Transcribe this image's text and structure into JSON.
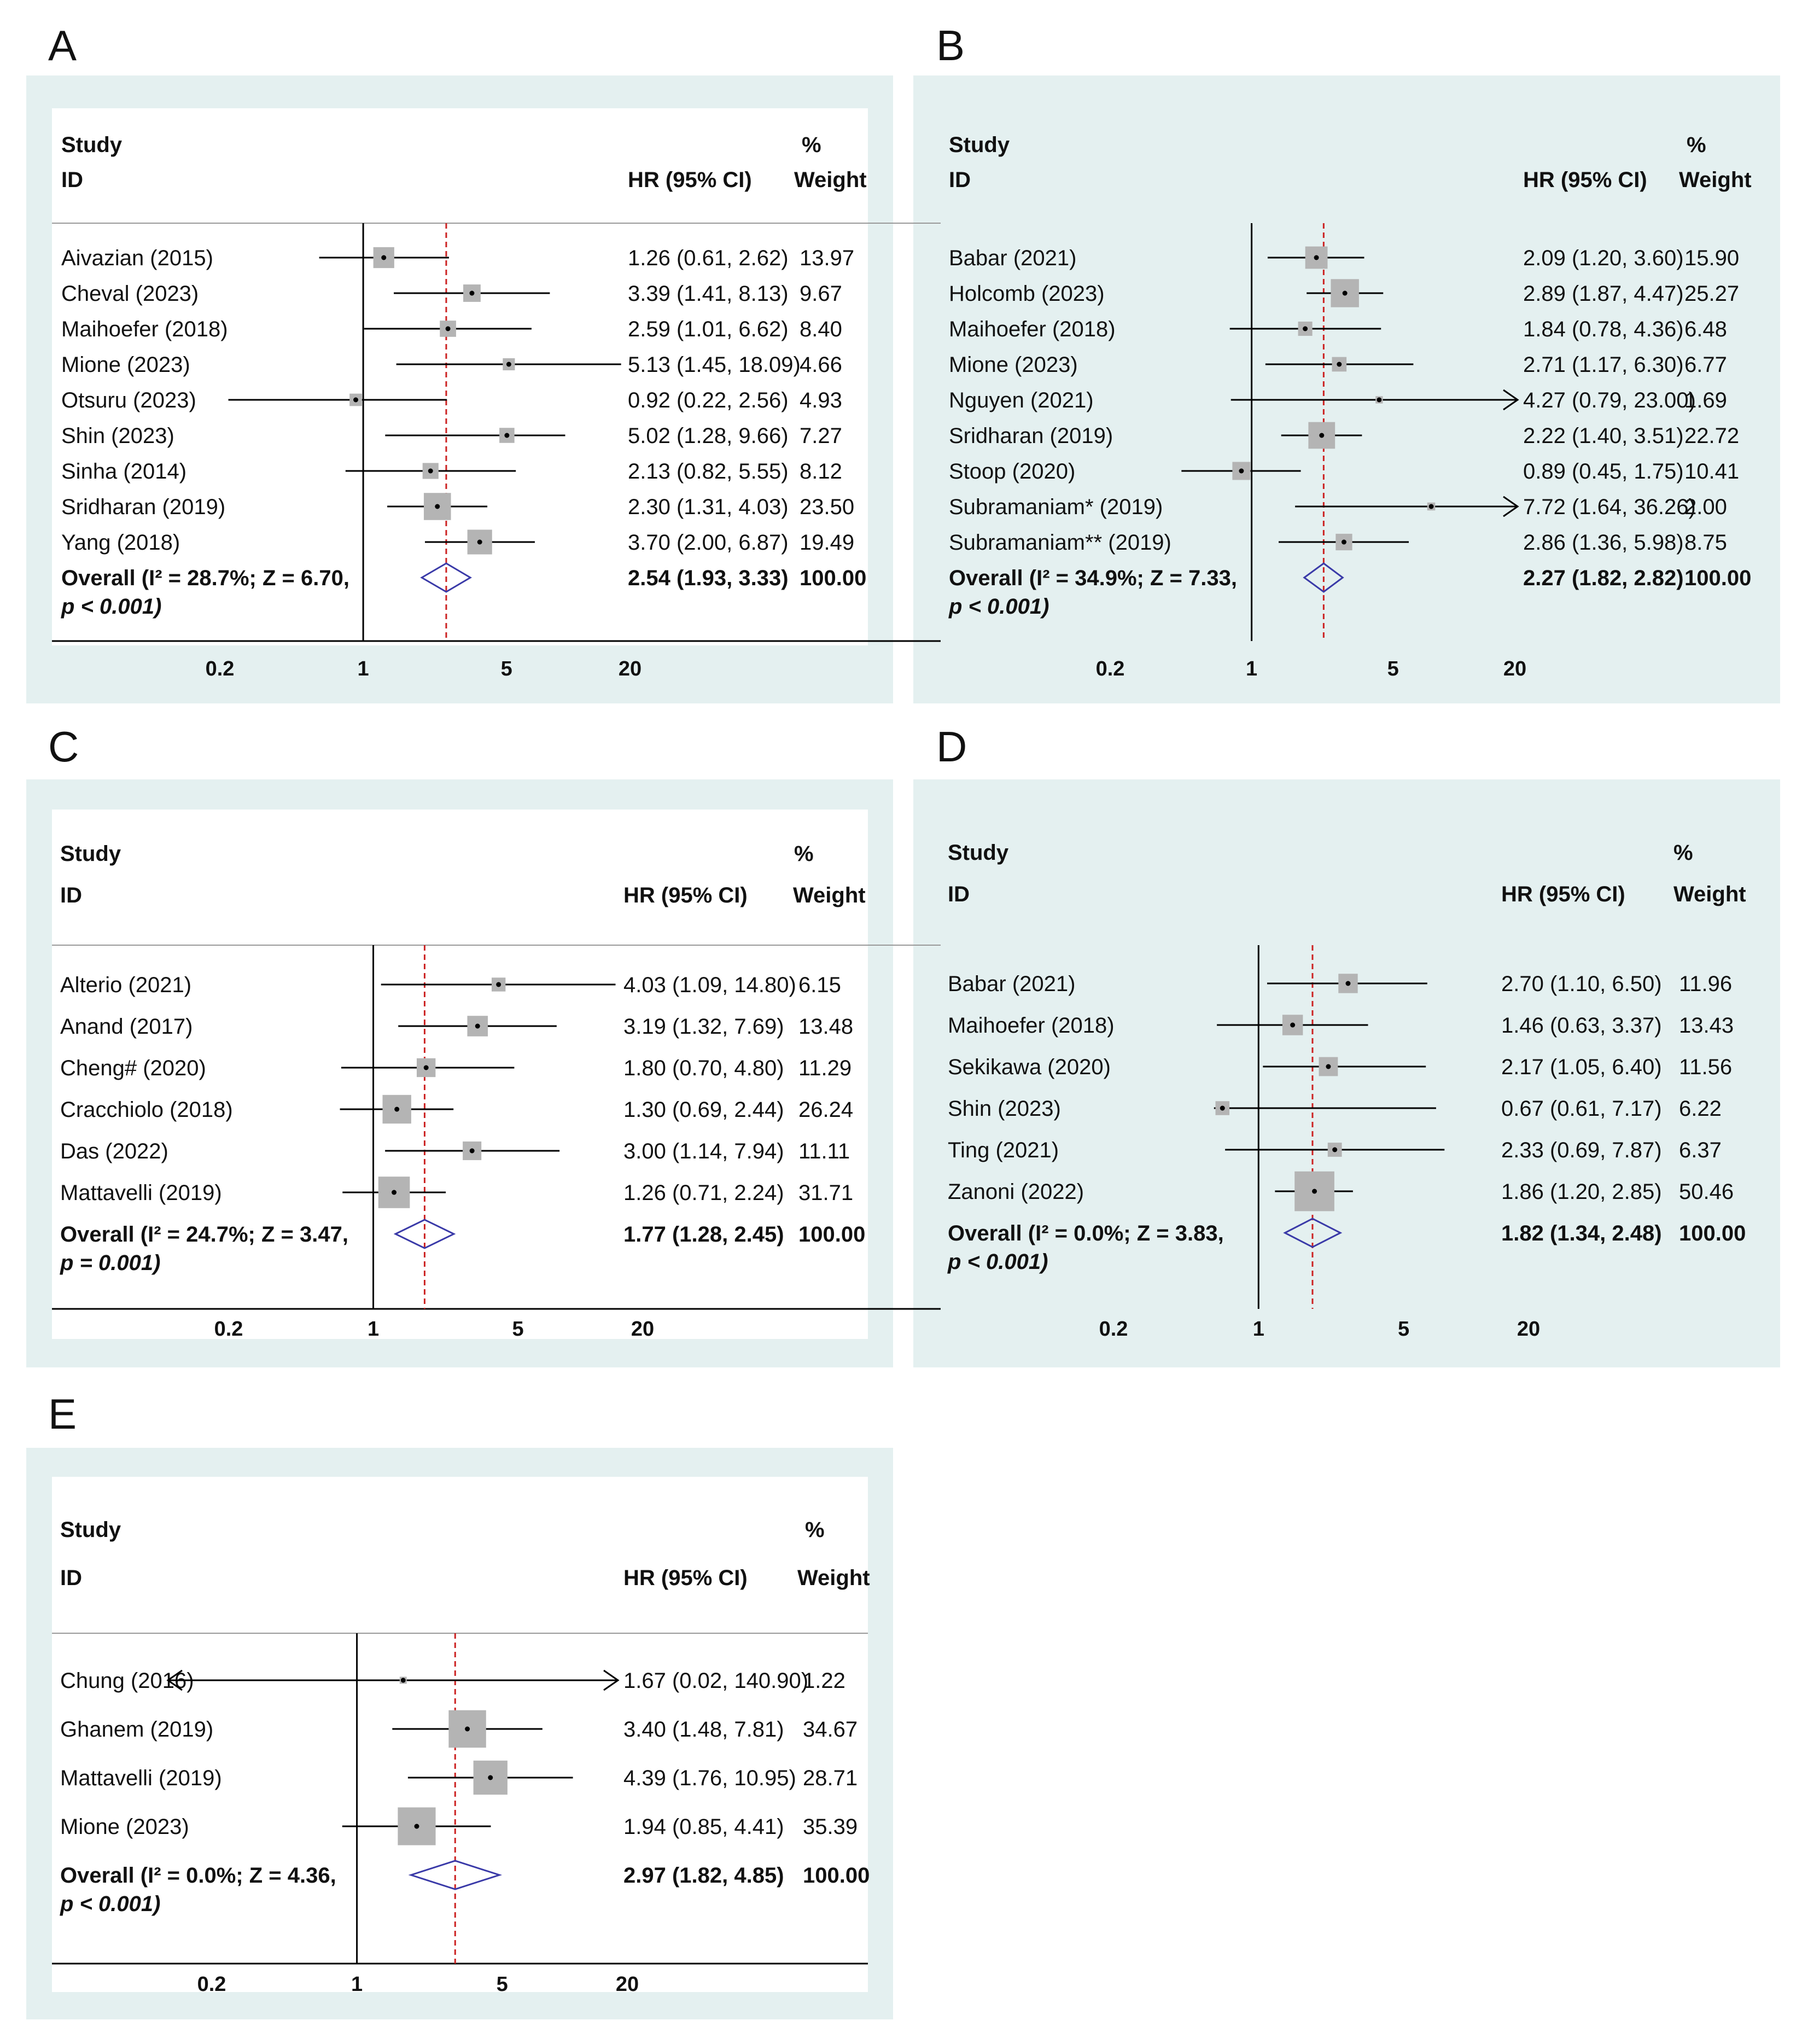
{
  "chart_data": [
    {
      "type": "forest",
      "panel": "A",
      "headers": {
        "study": "Study",
        "id": "ID",
        "estimate": "HR (95% CI)",
        "pct": "%",
        "weight": "Weight"
      },
      "x_ticks": [
        0.2,
        1,
        5,
        20
      ],
      "x_tick_labels": [
        "0.2",
        "1",
        "5",
        "20"
      ],
      "pooled_line": 2.54,
      "rows": [
        {
          "study": "Aivazian (2015)",
          "hr": 1.26,
          "lower": 0.61,
          "upper": 2.62,
          "ci_text": "1.26 (0.61, 2.62)",
          "weight": 13.97,
          "weight_text": "13.97"
        },
        {
          "study": "Cheval (2023)",
          "hr": 3.39,
          "lower": 1.41,
          "upper": 8.13,
          "ci_text": "3.39 (1.41, 8.13)",
          "weight": 9.67,
          "weight_text": "9.67"
        },
        {
          "study": "Maihoefer (2018)",
          "hr": 2.59,
          "lower": 1.01,
          "upper": 6.62,
          "ci_text": "2.59 (1.01, 6.62)",
          "weight": 8.4,
          "weight_text": "8.40"
        },
        {
          "study": "Mione (2023)",
          "hr": 5.13,
          "lower": 1.45,
          "upper": 18.09,
          "ci_text": "5.13 (1.45, 18.09)",
          "weight": 4.66,
          "weight_text": "4.66"
        },
        {
          "study": "Otsuru (2023)",
          "hr": 0.92,
          "lower": 0.22,
          "upper": 2.56,
          "ci_text": "0.92 (0.22, 2.56)",
          "weight": 4.93,
          "weight_text": "4.93"
        },
        {
          "study": "Shin (2023)",
          "hr": 5.02,
          "lower": 1.28,
          "upper": 9.66,
          "ci_text": "5.02 (1.28, 9.66)",
          "weight": 7.27,
          "weight_text": "7.27"
        },
        {
          "study": "Sinha (2014)",
          "hr": 2.13,
          "lower": 0.82,
          "upper": 5.55,
          "ci_text": "2.13 (0.82, 5.55)",
          "weight": 8.12,
          "weight_text": "8.12"
        },
        {
          "study": "Sridharan (2019)",
          "hr": 2.3,
          "lower": 1.31,
          "upper": 4.03,
          "ci_text": "2.30 (1.31, 4.03)",
          "weight": 23.5,
          "weight_text": "23.50"
        },
        {
          "study": "Yang (2018)",
          "hr": 3.7,
          "lower": 2.0,
          "upper": 6.87,
          "ci_text": "3.70 (2.00, 6.87)",
          "weight": 19.49,
          "weight_text": "19.49"
        }
      ],
      "overall": {
        "label_1": "Overall  (I² = 28.7%; Z = 6.70,",
        "label_2": "p < 0.001)",
        "hr": 2.54,
        "lower": 1.93,
        "upper": 3.33,
        "ci_text": "2.54 (1.93, 3.33)",
        "weight_text": "100.00"
      }
    },
    {
      "type": "forest",
      "panel": "B",
      "headers": {
        "study": "Study",
        "id": "ID",
        "estimate": "HR (95% CI)",
        "pct": "%",
        "weight": "Weight"
      },
      "x_ticks": [
        0.2,
        1,
        5,
        20
      ],
      "x_tick_labels": [
        "0.2",
        "1",
        "5",
        "20"
      ],
      "pooled_line": 2.27,
      "rows": [
        {
          "study": "Babar (2021)",
          "hr": 2.09,
          "lower": 1.2,
          "upper": 3.6,
          "ci_text": "2.09 (1.20, 3.60)",
          "weight": 15.9,
          "weight_text": "15.90"
        },
        {
          "study": "Holcomb (2023)",
          "hr": 2.89,
          "lower": 1.87,
          "upper": 4.47,
          "ci_text": "2.89 (1.87, 4.47)",
          "weight": 25.27,
          "weight_text": "25.27"
        },
        {
          "study": "Maihoefer (2018)",
          "hr": 1.84,
          "lower": 0.78,
          "upper": 4.36,
          "ci_text": "1.84 (0.78, 4.36)",
          "weight": 6.48,
          "weight_text": "6.48"
        },
        {
          "study": "Mione (2023)",
          "hr": 2.71,
          "lower": 1.17,
          "upper": 6.3,
          "ci_text": "2.71 (1.17, 6.30)",
          "weight": 6.77,
          "weight_text": "6.77"
        },
        {
          "study": "Nguyen (2021)",
          "hr": 4.27,
          "lower": 0.79,
          "upper": 23.0,
          "ci_text": "4.27 (0.79, 23.00)",
          "weight": 1.69,
          "weight_text": "1.69"
        },
        {
          "study": "Sridharan (2019)",
          "hr": 2.22,
          "lower": 1.4,
          "upper": 3.51,
          "ci_text": "2.22 (1.40, 3.51)",
          "weight": 22.72,
          "weight_text": "22.72"
        },
        {
          "study": "Stoop (2020)",
          "hr": 0.89,
          "lower": 0.45,
          "upper": 1.75,
          "ci_text": "0.89 (0.45, 1.75)",
          "weight": 10.41,
          "weight_text": "10.41"
        },
        {
          "study": "Subramaniam* (2019)",
          "hr": 7.72,
          "lower": 1.64,
          "upper": 36.26,
          "ci_text": "7.72 (1.64, 36.26)",
          "weight": 2.0,
          "weight_text": "2.00"
        },
        {
          "study": "Subramaniam** (2019)",
          "hr": 2.86,
          "lower": 1.36,
          "upper": 5.98,
          "ci_text": "2.86 (1.36, 5.98)",
          "weight": 8.75,
          "weight_text": "8.75"
        }
      ],
      "overall": {
        "label_1": "Overall  (I² = 34.9%; Z = 7.33,",
        "label_2": "p < 0.001)",
        "hr": 2.27,
        "lower": 1.82,
        "upper": 2.82,
        "ci_text": "2.27 (1.82, 2.82)",
        "weight_text": "100.00"
      }
    },
    {
      "type": "forest",
      "panel": "C",
      "headers": {
        "study": "Study",
        "id": "ID",
        "estimate": "HR (95% CI)",
        "pct": "%",
        "weight": "Weight"
      },
      "x_ticks": [
        0.2,
        1,
        5,
        20
      ],
      "x_tick_labels": [
        "0.2",
        "1",
        "5",
        "20"
      ],
      "pooled_line": 1.77,
      "rows": [
        {
          "study": "Alterio (2021)",
          "hr": 4.03,
          "lower": 1.09,
          "upper": 14.8,
          "ci_text": "4.03 (1.09, 14.80)",
          "weight": 6.15,
          "weight_text": "6.15"
        },
        {
          "study": "Anand (2017)",
          "hr": 3.19,
          "lower": 1.32,
          "upper": 7.69,
          "ci_text": "3.19 (1.32, 7.69)",
          "weight": 13.48,
          "weight_text": "13.48"
        },
        {
          "study": "Cheng# (2020)",
          "hr": 1.8,
          "lower": 0.7,
          "upper": 4.8,
          "ci_text": "1.80 (0.70, 4.80)",
          "weight": 11.29,
          "weight_text": "11.29"
        },
        {
          "study": "Cracchiolo (2018)",
          "hr": 1.3,
          "lower": 0.69,
          "upper": 2.44,
          "ci_text": "1.30 (0.69, 2.44)",
          "weight": 26.24,
          "weight_text": "26.24"
        },
        {
          "study": "Das (2022)",
          "hr": 3.0,
          "lower": 1.14,
          "upper": 7.94,
          "ci_text": "3.00 (1.14, 7.94)",
          "weight": 11.11,
          "weight_text": "11.11"
        },
        {
          "study": "Mattavelli (2019)",
          "hr": 1.26,
          "lower": 0.71,
          "upper": 2.24,
          "ci_text": "1.26 (0.71, 2.24)",
          "weight": 31.71,
          "weight_text": "31.71"
        }
      ],
      "overall": {
        "label_1": "Overall  (I² = 24.7%; Z = 3.47,",
        "label_2": "p = 0.001)",
        "hr": 1.77,
        "lower": 1.28,
        "upper": 2.45,
        "ci_text": "1.77 (1.28, 2.45)",
        "weight_text": "100.00"
      }
    },
    {
      "type": "forest",
      "panel": "D",
      "headers": {
        "study": "Study",
        "id": "ID",
        "estimate": "HR (95% CI)",
        "pct": "%",
        "weight": "Weight"
      },
      "x_ticks": [
        0.2,
        1,
        5,
        20
      ],
      "x_tick_labels": [
        "0.2",
        "1",
        "5",
        "20"
      ],
      "pooled_line": 1.82,
      "rows": [
        {
          "study": "Babar (2021)",
          "hr": 2.7,
          "lower": 1.1,
          "upper": 6.5,
          "ci_text": "2.70 (1.10, 6.50)",
          "weight": 11.96,
          "weight_text": "11.96"
        },
        {
          "study": "Maihoefer (2018)",
          "hr": 1.46,
          "lower": 0.63,
          "upper": 3.37,
          "ci_text": "1.46 (0.63, 3.37)",
          "weight": 13.43,
          "weight_text": "13.43"
        },
        {
          "study": "Sekikawa (2020)",
          "hr": 2.17,
          "lower": 1.05,
          "upper": 6.4,
          "ci_text": "2.17 (1.05, 6.40)",
          "weight": 11.56,
          "weight_text": "11.56"
        },
        {
          "study": "Shin (2023)",
          "hr": 0.67,
          "lower": 0.61,
          "upper": 7.17,
          "ci_text": "0.67 (0.61, 7.17)",
          "weight": 6.22,
          "weight_text": "6.22"
        },
        {
          "study": "Ting (2021)",
          "hr": 2.33,
          "lower": 0.69,
          "upper": 7.87,
          "ci_text": "2.33 (0.69, 7.87)",
          "weight": 6.37,
          "weight_text": "6.37"
        },
        {
          "study": "Zanoni (2022)",
          "hr": 1.86,
          "lower": 1.2,
          "upper": 2.85,
          "ci_text": "1.86 (1.20, 2.85)",
          "weight": 50.46,
          "weight_text": "50.46"
        }
      ],
      "overall": {
        "label_1": "Overall  (I² = 0.0%; Z = 3.83,",
        "label_2": "p < 0.001)",
        "hr": 1.82,
        "lower": 1.34,
        "upper": 2.48,
        "ci_text": "1.82 (1.34, 2.48)",
        "weight_text": "100.00"
      }
    },
    {
      "type": "forest",
      "panel": "E",
      "headers": {
        "study": "Study",
        "id": "ID",
        "estimate": "HR (95% CI)",
        "pct": "%",
        "weight": "Weight"
      },
      "x_ticks": [
        0.2,
        1,
        5,
        20
      ],
      "x_tick_labels": [
        "0.2",
        "1",
        "5",
        "20"
      ],
      "pooled_line": 2.97,
      "rows": [
        {
          "study": "Chung (2016)",
          "hr": 1.67,
          "lower": 0.02,
          "upper": 140.9,
          "ci_text": "1.67 (0.02, 140.90)",
          "weight": 1.22,
          "weight_text": "1.22"
        },
        {
          "study": "Ghanem (2019)",
          "hr": 3.4,
          "lower": 1.48,
          "upper": 7.81,
          "ci_text": "3.40 (1.48, 7.81)",
          "weight": 34.67,
          "weight_text": "34.67"
        },
        {
          "study": "Mattavelli (2019)",
          "hr": 4.39,
          "lower": 1.76,
          "upper": 10.95,
          "ci_text": "4.39 (1.76, 10.95)",
          "weight": 28.71,
          "weight_text": "28.71"
        },
        {
          "study": "Mione (2023)",
          "hr": 1.94,
          "lower": 0.85,
          "upper": 4.41,
          "ci_text": "1.94 (0.85, 4.41)",
          "weight": 35.39,
          "weight_text": "35.39"
        }
      ],
      "overall": {
        "label_1": "Overall  (I² = 0.0%; Z = 4.36,",
        "label_2": "p < 0.001)",
        "hr": 2.97,
        "lower": 1.82,
        "upper": 4.85,
        "ci_text": "2.97 (1.82, 4.85)",
        "weight_text": "100.00"
      }
    }
  ],
  "colors": {
    "frame": "#e4f0f0",
    "axis": "#000000",
    "pooled_line": "#cc2222",
    "diamond": "#3a3aa8",
    "box": "#b4b4b4"
  }
}
